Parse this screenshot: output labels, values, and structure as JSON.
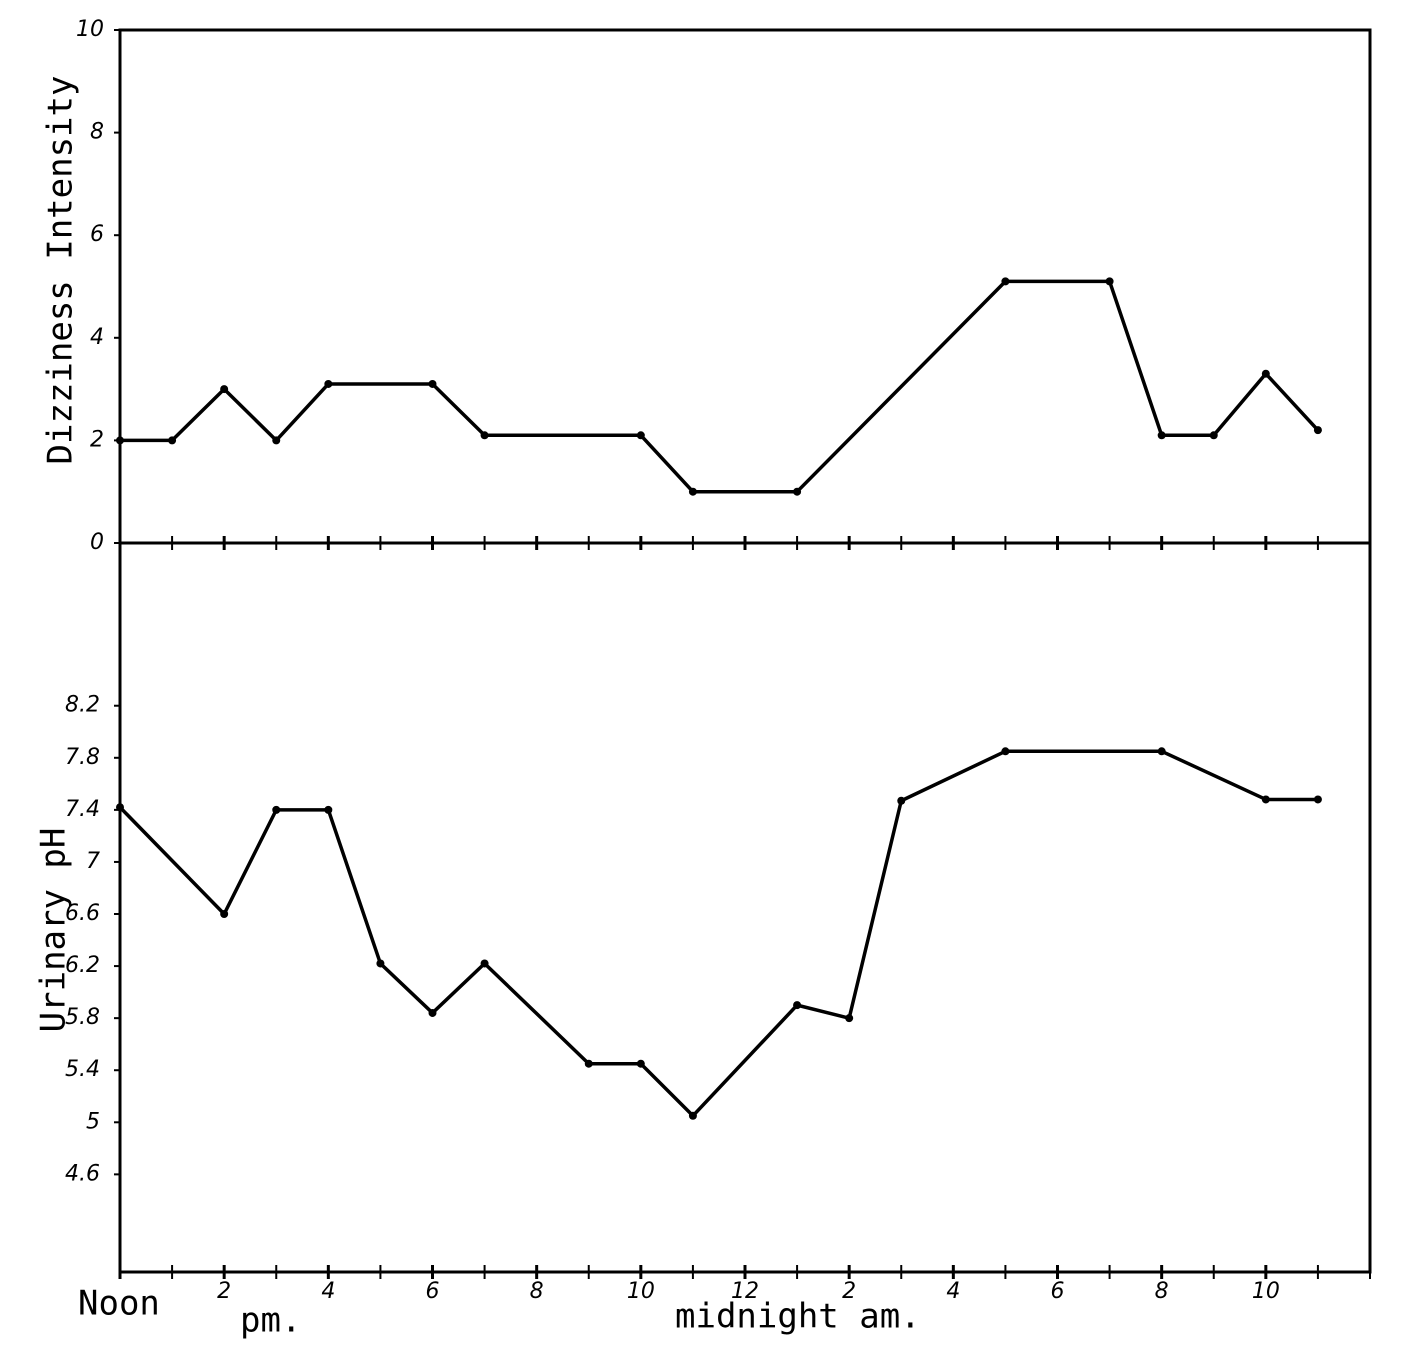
{
  "chart_data": [
    {
      "type": "line",
      "ylabel": "Dizziness Intensity",
      "color": "#000000",
      "x": [
        0,
        1,
        2,
        3,
        4,
        6,
        7,
        10,
        11,
        13,
        17,
        19,
        20,
        21,
        22,
        23
      ],
      "values": [
        2.0,
        2.0,
        3.0,
        2.0,
        3.1,
        3.1,
        2.1,
        2.1,
        1.0,
        1.0,
        5.1,
        5.1,
        2.1,
        2.1,
        3.3,
        2.2
      ],
      "xlim": [
        0,
        24
      ],
      "ylim": [
        0,
        10
      ],
      "yticks": [
        0,
        2,
        4,
        6,
        8,
        10
      ]
    },
    {
      "type": "line",
      "ylabel": "Urinary pH",
      "color": "#000000",
      "x": [
        0,
        2,
        3,
        4,
        5,
        6,
        7,
        9,
        10,
        11,
        13,
        14,
        15,
        17,
        20,
        22,
        23
      ],
      "values": [
        7.42,
        6.6,
        7.4,
        7.4,
        6.22,
        5.84,
        6.22,
        5.45,
        5.45,
        5.05,
        5.9,
        5.8,
        7.47,
        7.85,
        7.85,
        7.48,
        7.48
      ],
      "xlim": [
        0,
        24
      ],
      "ylim": [
        3.85,
        9.45
      ],
      "yticks": [
        4.6,
        5.0,
        5.4,
        5.8,
        6.2,
        6.6,
        7.0,
        7.4,
        7.8,
        8.2
      ],
      "xticks": [
        {
          "value": 0,
          "label": "Noon"
        },
        2,
        4,
        6,
        8,
        10,
        12,
        {
          "value": 14,
          "label": "2"
        },
        {
          "value": 16,
          "label": "4"
        },
        {
          "value": 18,
          "label": "6"
        },
        {
          "value": 20,
          "label": "8"
        },
        {
          "value": 22,
          "label": "10"
        }
      ],
      "minor_xticks": [
        1,
        3,
        5,
        7,
        9,
        11,
        13,
        15,
        17,
        19,
        21,
        23,
        24
      ],
      "x_annotations": [
        "pm.",
        "midnight am."
      ]
    }
  ]
}
